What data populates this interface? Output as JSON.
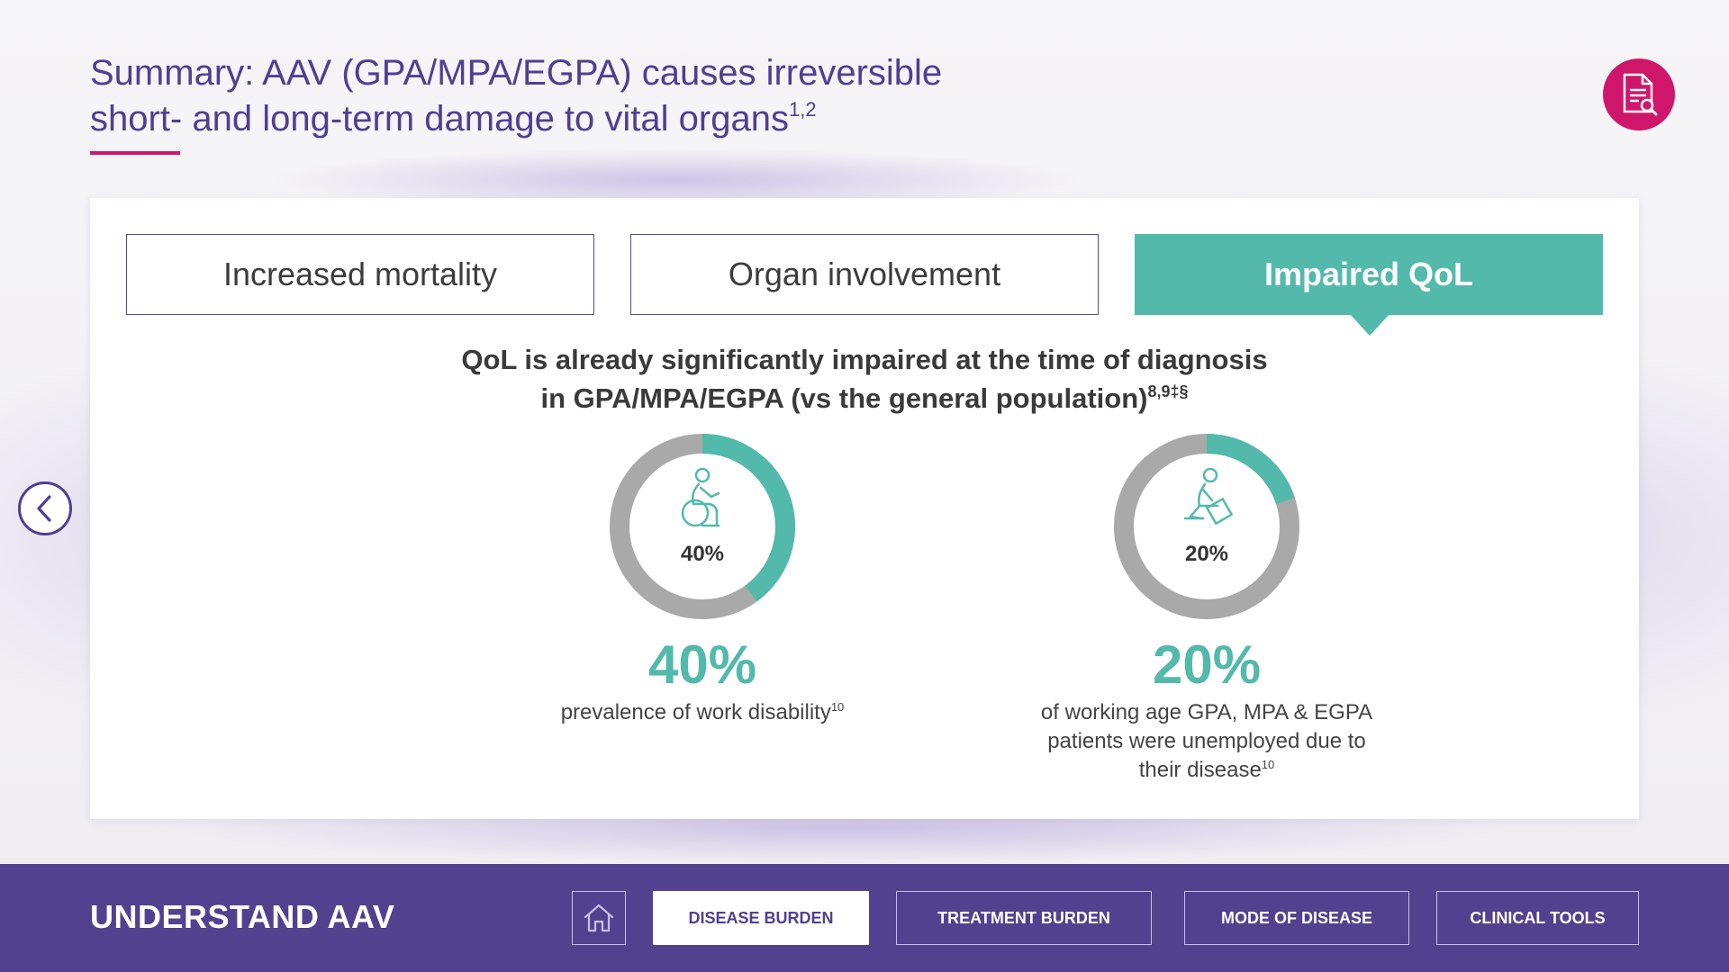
{
  "header": {
    "title_line1": "Summary: AAV (GPA/MPA/EGPA) causes irreversible",
    "title_line2": "short- and long-term damage to vital organs",
    "title_refs": "1,2"
  },
  "tabs": [
    {
      "label": "Increased mortality",
      "active": false
    },
    {
      "label": "Organ involvement",
      "active": false
    },
    {
      "label": "Impaired QoL",
      "active": true
    }
  ],
  "content": {
    "headline_line1": "QoL is already significantly impaired at the time of diagnosis",
    "headline_line2": "in GPA/MPA/EGPA (vs the general population)",
    "headline_refs": "8,9‡§",
    "stats": [
      {
        "donut_label": "40%",
        "value": 40,
        "big_value": "40%",
        "description": "prevalence of work disability",
        "desc_ref": "10",
        "icon": "wheelchair-person-icon"
      },
      {
        "donut_label": "20%",
        "value": 20,
        "big_value": "20%",
        "description_line1": "of working age GPA, MPA & EGPA",
        "description_line2": "patients were unemployed due to",
        "description_line3": "their disease",
        "desc_ref": "10",
        "icon": "person-with-box-icon"
      }
    ]
  },
  "footer": {
    "section_title": "UNDERSTAND AAV",
    "nav": [
      {
        "label": "DISEASE BURDEN",
        "active": true
      },
      {
        "label": "TREATMENT BURDEN",
        "active": false
      },
      {
        "label": "MODE OF DISEASE",
        "active": false
      },
      {
        "label": "CLINICAL TOOLS",
        "active": false
      }
    ]
  },
  "colors": {
    "brand_purple": "#51418f",
    "accent_magenta": "#d0166b",
    "teal": "#52b9ab",
    "ring_gray": "#a9a9a9"
  }
}
